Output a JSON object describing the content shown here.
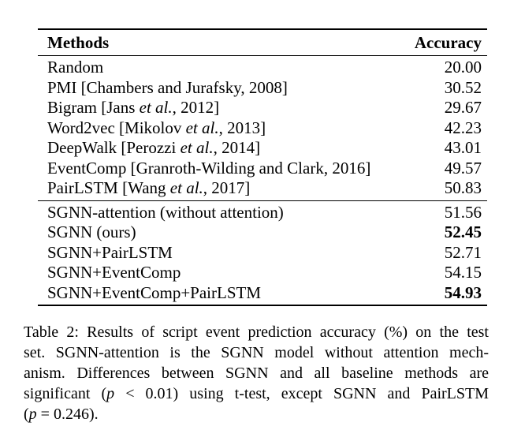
{
  "colors": {
    "text": "#000000",
    "background": "#ffffff"
  },
  "table": {
    "header": {
      "methods": "Methods",
      "accuracy": "Accuracy"
    },
    "baseline_rows": [
      {
        "pre": "Random",
        "etal": "",
        "post": "",
        "acc": "20.00",
        "bold": false
      },
      {
        "pre": "PMI [Chambers and Jurafsky, 2008]",
        "etal": "",
        "post": "",
        "acc": "30.52",
        "bold": false
      },
      {
        "pre": "Bigram [Jans ",
        "etal": "et al.",
        "post": ", 2012]",
        "acc": "29.67",
        "bold": false
      },
      {
        "pre": "Word2vec [Mikolov ",
        "etal": "et al.",
        "post": ", 2013]",
        "acc": "42.23",
        "bold": false
      },
      {
        "pre": "DeepWalk [Perozzi ",
        "etal": "et al.",
        "post": ", 2014]",
        "acc": "43.01",
        "bold": false
      },
      {
        "pre": "EventComp [Granroth-Wilding and Clark, 2016]",
        "etal": "",
        "post": "",
        "acc": "49.57",
        "bold": false
      },
      {
        "pre": "PairLSTM [Wang ",
        "etal": "et al.",
        "post": ", 2017]",
        "acc": "50.83",
        "bold": false
      }
    ],
    "model_rows": [
      {
        "pre": "SGNN-attention (without attention)",
        "etal": "",
        "post": "",
        "acc": "51.56",
        "bold": false
      },
      {
        "pre": "SGNN (ours)",
        "etal": "",
        "post": "",
        "acc": "52.45",
        "bold": true
      },
      {
        "pre": "SGNN+PairLSTM",
        "etal": "",
        "post": "",
        "acc": "52.71",
        "bold": false
      },
      {
        "pre": "SGNN+EventComp",
        "etal": "",
        "post": "",
        "acc": "54.15",
        "bold": false
      },
      {
        "pre": "SGNN+EventComp+PairLSTM",
        "etal": "",
        "post": "",
        "acc": "54.93",
        "bold": true
      }
    ]
  },
  "caption": {
    "lines": [
      {
        "segments": [
          {
            "t": "Table 2: Results of script event prediction accuracy (%) on the test"
          }
        ]
      },
      {
        "segments": [
          {
            "t": "set.  SGNN-attention is the SGNN model without attention mech-"
          }
        ]
      },
      {
        "segments": [
          {
            "t": "anism.  Differences between SGNN and all baseline methods are"
          }
        ]
      },
      {
        "segments": [
          {
            "t": "significant ("
          },
          {
            "t": "p",
            "italic": true
          },
          {
            "t": " < 0.01) using t-test, except SGNN and PairLSTM"
          }
        ]
      },
      {
        "segments": [
          {
            "t": "("
          },
          {
            "t": "p",
            "italic": true
          },
          {
            "t": " = 0.246)."
          }
        ]
      }
    ]
  }
}
